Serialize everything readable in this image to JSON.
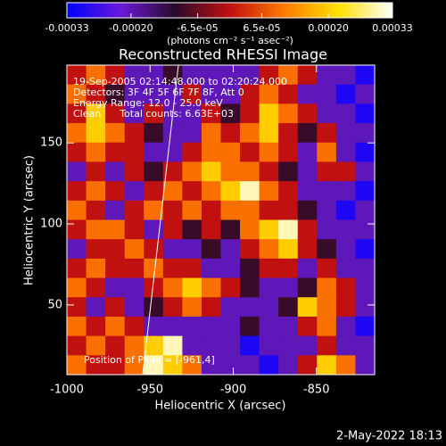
{
  "chart_data": {
    "type": "heatmap",
    "title": "Reconstructed RHESSI Image",
    "xlabel": "Heliocentric X (arcsec)",
    "ylabel": "Heliocentric Y (arcsec)",
    "xlim": [
      -1000,
      -815
    ],
    "ylim": [
      7,
      198
    ],
    "xticks": [
      -1000,
      -950,
      -900,
      -850
    ],
    "yticks": [
      50,
      100,
      150
    ],
    "colorbar_label": "(photons cm⁻² s⁻¹ asec⁻²)",
    "zlim": [
      -0.00033,
      0.00033
    ],
    "zticks": [
      -0.00033,
      {
        "value": -0.0002,
        "label": "-0.00020"
      },
      {
        "value": -6.5e-05,
        "label": "-6.5e-05"
      },
      {
        "value": 6.5e-05,
        "label": "6.5e-05"
      },
      {
        "value": 0.0002,
        "label": "0.00020"
      },
      0.00033
    ],
    "colormap": [
      "#0000ff",
      "#6a1ad8",
      "#2a0a2a",
      "#c01010",
      "#ff7a00",
      "#ffe000",
      "#ffffff"
    ],
    "annotations": [
      "19-Sep-2005 02:14:48.000 to 02:20:24.000",
      "Detectors: 3F 4F 5F 6F 7F 8F, Att 0",
      "Energy Range: 12.0 - 25.0 keV",
      "Clean      Total counts: 6.63E+03",
      "Position of Peak = [-961,4]"
    ],
    "footer": "2-May-2022 18:13",
    "z": [
      [
        0,
        0.0001,
        0,
        -0.0002,
        -0.0002,
        -0.0001,
        -0.0002,
        -0.0002,
        -0.0002,
        -0.0002,
        0,
        0.0001,
        0,
        -0.0002,
        -0.0002,
        -0.0003
      ],
      [
        0.0001,
        0,
        -0.0001,
        -0.0002,
        -0.0002,
        -0.0002,
        0,
        -0.0002,
        -0.0002,
        0,
        0.0001,
        0,
        -0.0002,
        -0.0002,
        -0.0003,
        -0.0002
      ],
      [
        0,
        0.0002,
        0,
        -0.0002,
        0,
        -0.0002,
        -0.0002,
        0,
        -0.0001,
        0,
        0.0002,
        0.0001,
        0,
        -0.0002,
        -0.0002,
        -0.0003
      ],
      [
        0.0001,
        0.0002,
        0.0001,
        0,
        -0.0001,
        -0.0002,
        -0.0002,
        0.0001,
        0,
        0.0001,
        0.0002,
        0,
        -0.0001,
        0,
        -0.0002,
        -0.0002
      ],
      [
        0,
        0.0001,
        0,
        0,
        -0.0002,
        -0.0002,
        0,
        0.0001,
        0.0001,
        0,
        0.0001,
        0,
        -0.0002,
        0.0001,
        -0.0002,
        -0.0003
      ],
      [
        -0.0002,
        0,
        -0.0002,
        0,
        -0.0001,
        0,
        0.0001,
        0.0002,
        0.0001,
        0.0001,
        0,
        -0.0001,
        -0.0002,
        0,
        0,
        -0.0002
      ],
      [
        0,
        0.0001,
        0,
        -0.0002,
        0,
        0.0001,
        0,
        0.0001,
        0.0002,
        0.0003,
        0.0001,
        0,
        -0.0002,
        -0.0002,
        -0.0002,
        -0.0003
      ],
      [
        0.0001,
        0,
        -0.0002,
        0,
        0.0001,
        0,
        0.0001,
        0,
        0.0001,
        0.0001,
        0,
        0,
        -0.0001,
        -0.0002,
        -0.0003,
        -0.0002
      ],
      [
        0,
        0.0001,
        0.0001,
        0,
        -0.0002,
        0,
        -0.0001,
        0,
        -0.0001,
        0.0001,
        0.0002,
        0.0003,
        0,
        -0.0002,
        -0.0002,
        -0.0002
      ],
      [
        -0.0002,
        0,
        0,
        0.0001,
        0,
        -0.0002,
        -0.0002,
        -0.0001,
        -0.0002,
        0,
        0.0001,
        0.0002,
        0,
        -0.0001,
        -0.0002,
        -0.0003
      ],
      [
        0,
        0.0001,
        0,
        0,
        0.0001,
        0,
        0,
        -0.0002,
        -0.0002,
        -0.0001,
        0,
        0,
        -0.0002,
        0,
        -0.0002,
        -0.0002
      ],
      [
        0.0001,
        0,
        -0.0002,
        -0.0002,
        0,
        0.0001,
        0.0002,
        0.0001,
        0,
        -0.0001,
        -0.0002,
        -0.0002,
        -0.0001,
        0.0001,
        0,
        -0.0002
      ],
      [
        0,
        -0.0002,
        0,
        -0.0002,
        -0.0001,
        0,
        0.0001,
        0,
        -0.0002,
        -0.0002,
        -0.0002,
        -0.0001,
        0.0002,
        0.0001,
        0,
        -0.0002
      ],
      [
        0.0001,
        0,
        0.0001,
        0,
        -0.0002,
        -0.0002,
        -0.0002,
        -0.0002,
        -0.0002,
        -0.0001,
        -0.0002,
        -0.0002,
        0,
        0.0001,
        -0.0002,
        -0.0003
      ],
      [
        0,
        0.0001,
        0,
        0.0001,
        0.0002,
        0.0003,
        -0.0002,
        -0.0002,
        -0.0002,
        -0.0003,
        -0.0002,
        -0.0002,
        -0.0002,
        0,
        -0.0002,
        -0.0002
      ],
      [
        0.0001,
        0,
        0,
        0.0001,
        0.0003,
        0.0002,
        0.0001,
        -0.0002,
        -0.0002,
        -0.0002,
        -0.0003,
        -0.0002,
        0,
        0.0002,
        0.0001,
        -0.0002
      ]
    ]
  }
}
